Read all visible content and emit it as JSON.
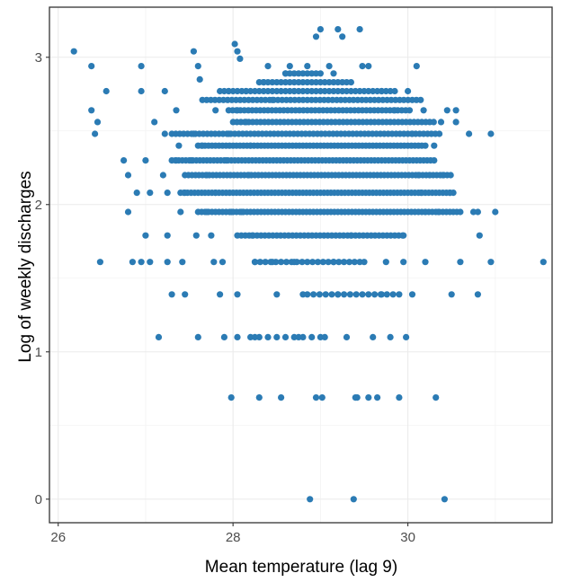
{
  "chart_data": {
    "type": "scatter",
    "title": "",
    "xlabel": "Mean temperature (lag 9)",
    "ylabel": "Log of weekly discharges",
    "xlim": [
      25.9,
      31.65
    ],
    "ylim": [
      -0.16,
      3.34
    ],
    "x_ticks": [
      26,
      28,
      30
    ],
    "y_ticks": [
      0,
      1,
      2,
      3
    ],
    "x_tick_labels": [
      "26",
      "28",
      "30"
    ],
    "y_tick_labels": [
      "0",
      "1",
      "2",
      "3"
    ],
    "grid": true,
    "legend": "none",
    "point_color": "#2b7bb4",
    "points": [
      [
        26.18,
        3.04
      ],
      [
        26.38,
        2.94
      ],
      [
        26.38,
        2.64
      ],
      [
        26.42,
        2.48
      ],
      [
        26.45,
        2.56
      ],
      [
        26.55,
        2.77
      ],
      [
        26.48,
        1.61
      ],
      [
        26.95,
        2.94
      ],
      [
        26.95,
        2.77
      ],
      [
        26.75,
        2.3
      ],
      [
        26.8,
        2.2
      ],
      [
        26.9,
        2.08
      ],
      [
        26.8,
        1.95
      ],
      [
        26.85,
        1.61
      ],
      [
        26.95,
        1.61
      ],
      [
        27.0,
        2.3
      ],
      [
        27.05,
        2.08
      ],
      [
        27.0,
        1.79
      ],
      [
        27.05,
        1.61
      ],
      [
        27.1,
        2.56
      ],
      [
        27.15,
        1.1
      ],
      [
        27.22,
        2.77
      ],
      [
        27.22,
        2.48
      ],
      [
        27.2,
        2.2
      ],
      [
        27.25,
        2.08
      ],
      [
        27.25,
        1.79
      ],
      [
        27.25,
        1.61
      ],
      [
        27.3,
        1.39
      ],
      [
        27.35,
        2.64
      ],
      [
        27.38,
        2.4
      ],
      [
        27.35,
        2.3
      ],
      [
        27.4,
        1.95
      ],
      [
        27.45,
        2.08
      ],
      [
        27.42,
        1.61
      ],
      [
        27.45,
        1.39
      ],
      [
        27.55,
        3.04
      ],
      [
        27.55,
        2.48
      ],
      [
        27.52,
        2.3
      ],
      [
        27.58,
        1.79
      ],
      [
        27.6,
        2.94
      ],
      [
        27.6,
        1.1
      ],
      [
        27.62,
        2.85
      ],
      [
        27.65,
        2.4
      ],
      [
        27.7,
        2.2
      ],
      [
        27.7,
        1.95
      ],
      [
        27.8,
        2.64
      ],
      [
        27.8,
        2.08
      ],
      [
        27.75,
        1.79
      ],
      [
        27.78,
        1.61
      ],
      [
        27.85,
        1.39
      ],
      [
        27.88,
        1.61
      ],
      [
        27.9,
        1.1
      ],
      [
        27.95,
        2.77
      ],
      [
        27.95,
        2.48
      ],
      [
        27.92,
        2.3
      ],
      [
        27.98,
        1.95
      ],
      [
        27.98,
        0.69
      ],
      [
        28.02,
        3.09
      ],
      [
        28.05,
        3.04
      ],
      [
        28.08,
        2.99
      ],
      [
        28.05,
        2.64
      ],
      [
        28.1,
        1.95
      ],
      [
        28.05,
        1.39
      ],
      [
        28.05,
        1.1
      ],
      [
        28.15,
        2.77
      ],
      [
        28.15,
        2.56
      ],
      [
        28.2,
        2.4
      ],
      [
        28.18,
        2.2
      ],
      [
        28.22,
        1.79
      ],
      [
        28.25,
        1.61
      ],
      [
        28.25,
        1.1
      ],
      [
        28.3,
        0.69
      ],
      [
        28.4,
        2.94
      ],
      [
        28.35,
        2.83
      ],
      [
        28.45,
        2.71
      ],
      [
        28.45,
        1.61
      ],
      [
        28.5,
        1.39
      ],
      [
        28.55,
        0.69
      ],
      [
        28.6,
        2.89
      ],
      [
        28.65,
        2.94
      ],
      [
        28.7,
        2.77
      ],
      [
        28.7,
        1.61
      ],
      [
        28.75,
        1.1
      ],
      [
        28.8,
        1.39
      ],
      [
        28.85,
        2.94
      ],
      [
        28.88,
        0.0
      ],
      [
        28.95,
        3.14
      ],
      [
        29.0,
        3.19
      ],
      [
        29.05,
        1.1
      ],
      [
        28.95,
        0.69
      ],
      [
        29.02,
        0.69
      ],
      [
        29.1,
        2.94
      ],
      [
        29.15,
        2.89
      ],
      [
        29.15,
        1.61
      ],
      [
        29.2,
        3.19
      ],
      [
        29.25,
        3.14
      ],
      [
        29.2,
        1.39
      ],
      [
        29.3,
        1.1
      ],
      [
        29.35,
        1.79
      ],
      [
        29.38,
        0.0
      ],
      [
        29.4,
        0.69
      ],
      [
        29.42,
        0.69
      ],
      [
        29.45,
        3.19
      ],
      [
        29.48,
        2.94
      ],
      [
        29.5,
        1.61
      ],
      [
        29.55,
        2.94
      ],
      [
        29.55,
        0.69
      ],
      [
        29.6,
        1.1
      ],
      [
        29.65,
        0.69
      ],
      [
        29.7,
        2.77
      ],
      [
        29.7,
        1.39
      ],
      [
        29.75,
        1.61
      ],
      [
        29.8,
        1.1
      ],
      [
        29.85,
        2.64
      ],
      [
        29.9,
        0.69
      ],
      [
        29.95,
        1.79
      ],
      [
        29.95,
        1.61
      ],
      [
        29.98,
        1.1
      ],
      [
        30.0,
        2.77
      ],
      [
        30.05,
        2.48
      ],
      [
        30.05,
        1.39
      ],
      [
        30.1,
        2.94
      ],
      [
        30.12,
        2.2
      ],
      [
        30.15,
        2.08
      ],
      [
        30.18,
        2.64
      ],
      [
        30.2,
        1.61
      ],
      [
        30.2,
        1.95
      ],
      [
        30.25,
        2.2
      ],
      [
        30.3,
        2.4
      ],
      [
        30.32,
        0.69
      ],
      [
        30.35,
        1.95
      ],
      [
        30.38,
        2.56
      ],
      [
        30.4,
        2.2
      ],
      [
        30.42,
        0.0
      ],
      [
        30.45,
        2.64
      ],
      [
        30.48,
        2.08
      ],
      [
        30.5,
        1.39
      ],
      [
        30.55,
        2.64
      ],
      [
        30.55,
        2.56
      ],
      [
        30.6,
        1.61
      ],
      [
        30.7,
        2.48
      ],
      [
        30.75,
        1.95
      ],
      [
        30.8,
        1.95
      ],
      [
        30.82,
        1.79
      ],
      [
        30.8,
        1.39
      ],
      [
        30.95,
        2.48
      ],
      [
        30.95,
        1.61
      ],
      [
        31.0,
        1.95
      ],
      [
        31.55,
        1.61
      ]
    ],
    "dense_rows": [
      {
        "y": 2.89,
        "x_from": 28.6,
        "x_to": 29.0,
        "step": 0.05
      },
      {
        "y": 2.83,
        "x_from": 28.3,
        "x_to": 29.35,
        "step": 0.05
      },
      {
        "y": 2.77,
        "x_from": 27.85,
        "x_to": 29.85,
        "step": 0.05
      },
      {
        "y": 2.71,
        "x_from": 27.65,
        "x_to": 30.15,
        "step": 0.048
      },
      {
        "y": 2.64,
        "x_from": 27.95,
        "x_to": 30.05,
        "step": 0.045
      },
      {
        "y": 2.56,
        "x_from": 28.0,
        "x_to": 30.3,
        "step": 0.045
      },
      {
        "y": 2.48,
        "x_from": 27.3,
        "x_to": 30.4,
        "step": 0.045
      },
      {
        "y": 2.4,
        "x_from": 27.6,
        "x_to": 30.2,
        "step": 0.04
      },
      {
        "y": 2.3,
        "x_from": 27.3,
        "x_to": 30.3,
        "step": 0.04
      },
      {
        "y": 2.2,
        "x_from": 27.45,
        "x_to": 30.5,
        "step": 0.04
      },
      {
        "y": 2.08,
        "x_from": 27.4,
        "x_to": 30.55,
        "step": 0.04
      },
      {
        "y": 1.95,
        "x_from": 27.6,
        "x_to": 30.6,
        "step": 0.04
      },
      {
        "y": 1.79,
        "x_from": 28.05,
        "x_to": 29.95,
        "step": 0.045
      },
      {
        "y": 1.61,
        "x_from": 28.25,
        "x_to": 29.5,
        "step": 0.06
      },
      {
        "y": 1.39,
        "x_from": 28.85,
        "x_to": 29.95,
        "step": 0.07
      },
      {
        "y": 1.1,
        "x_from": 28.2,
        "x_to": 29.0,
        "step": 0.1
      }
    ]
  }
}
